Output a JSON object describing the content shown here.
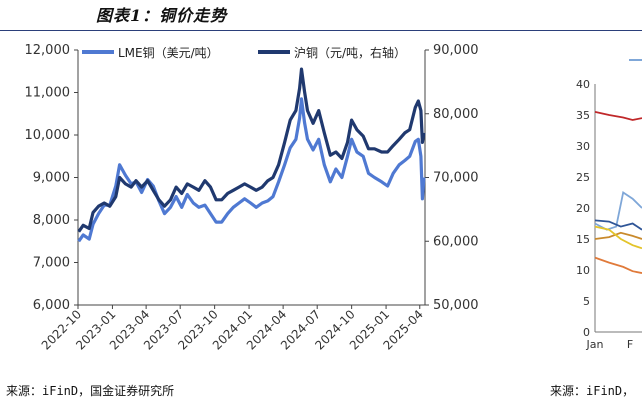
{
  "header": {
    "title": "图表1：铜价走势"
  },
  "footer": {
    "source_left": "来源：iFinD，国金证券研究所",
    "source_right": "来源：iFinD，"
  },
  "chart_data": [
    {
      "type": "line",
      "title": "",
      "x_ticks": [
        "2022-10",
        "2023-01",
        "2023-04",
        "2023-07",
        "2023-10",
        "2024-01",
        "2024-04",
        "2024-07",
        "2024-10",
        "2025-01",
        "2025-04"
      ],
      "y_left": {
        "label": "",
        "ylim": [
          6000,
          12000
        ],
        "ticks": [
          "6,000",
          "7,000",
          "8,000",
          "9,000",
          "10,000",
          "11,000",
          "12,000"
        ]
      },
      "y_right": {
        "label": "",
        "ylim": [
          50000,
          90000
        ],
        "ticks": [
          "50,000",
          "60,000",
          "70,000",
          "80,000",
          "90,000"
        ]
      },
      "legend_placement": "top",
      "grid": false,
      "series": [
        {
          "name": "LME铜（美元/吨）",
          "axis": "left",
          "color": "#4f79d2",
          "points": [
            [
              "2022-10-03",
              7500
            ],
            [
              "2022-10-15",
              7650
            ],
            [
              "2022-10-31",
              7550
            ],
            [
              "2022-11-10",
              7900
            ],
            [
              "2022-11-25",
              8150
            ],
            [
              "2022-12-10",
              8350
            ],
            [
              "2022-12-25",
              8350
            ],
            [
              "2023-01-10",
              8800
            ],
            [
              "2023-01-20",
              9300
            ],
            [
              "2023-02-05",
              9050
            ],
            [
              "2023-02-20",
              8850
            ],
            [
              "2023-03-05",
              8900
            ],
            [
              "2023-03-20",
              8650
            ],
            [
              "2023-04-05",
              8950
            ],
            [
              "2023-04-20",
              8800
            ],
            [
              "2023-05-05",
              8450
            ],
            [
              "2023-05-20",
              8150
            ],
            [
              "2023-06-05",
              8300
            ],
            [
              "2023-06-20",
              8550
            ],
            [
              "2023-07-05",
              8300
            ],
            [
              "2023-07-20",
              8600
            ],
            [
              "2023-08-05",
              8400
            ],
            [
              "2023-08-20",
              8300
            ],
            [
              "2023-09-05",
              8350
            ],
            [
              "2023-09-20",
              8150
            ],
            [
              "2023-10-05",
              7950
            ],
            [
              "2023-10-20",
              7950
            ],
            [
              "2023-11-05",
              8150
            ],
            [
              "2023-11-20",
              8300
            ],
            [
              "2023-12-05",
              8400
            ],
            [
              "2023-12-20",
              8500
            ],
            [
              "2024-01-05",
              8400
            ],
            [
              "2024-01-20",
              8300
            ],
            [
              "2024-02-05",
              8400
            ],
            [
              "2024-02-20",
              8450
            ],
            [
              "2024-03-05",
              8550
            ],
            [
              "2024-03-20",
              8900
            ],
            [
              "2024-04-05",
              9300
            ],
            [
              "2024-04-20",
              9700
            ],
            [
              "2024-05-05",
              9900
            ],
            [
              "2024-05-15",
              10400
            ],
            [
              "2024-05-20",
              10850
            ],
            [
              "2024-05-28",
              10300
            ],
            [
              "2024-06-05",
              9900
            ],
            [
              "2024-06-20",
              9650
            ],
            [
              "2024-07-05",
              9900
            ],
            [
              "2024-07-20",
              9300
            ],
            [
              "2024-08-05",
              8900
            ],
            [
              "2024-08-20",
              9200
            ],
            [
              "2024-09-05",
              9000
            ],
            [
              "2024-09-20",
              9500
            ],
            [
              "2024-10-01",
              9900
            ],
            [
              "2024-10-15",
              9600
            ],
            [
              "2024-11-01",
              9500
            ],
            [
              "2024-11-15",
              9100
            ],
            [
              "2024-12-01",
              9000
            ],
            [
              "2024-12-20",
              8900
            ],
            [
              "2025-01-05",
              8800
            ],
            [
              "2025-01-20",
              9100
            ],
            [
              "2025-02-05",
              9300
            ],
            [
              "2025-02-20",
              9400
            ],
            [
              "2025-03-05",
              9500
            ],
            [
              "2025-03-20",
              9850
            ],
            [
              "2025-03-28",
              9900
            ],
            [
              "2025-04-04",
              9500
            ],
            [
              "2025-04-08",
              8500
            ],
            [
              "2025-04-12",
              9000
            ]
          ]
        },
        {
          "name": "沪铜（元/吨，右轴）",
          "axis": "right",
          "color": "#20396f",
          "points": [
            [
              "2022-10-03",
              61500
            ],
            [
              "2022-10-15",
              62500
            ],
            [
              "2022-10-31",
              62000
            ],
            [
              "2022-11-10",
              64500
            ],
            [
              "2022-11-25",
              65500
            ],
            [
              "2022-12-10",
              66000
            ],
            [
              "2022-12-25",
              65500
            ],
            [
              "2023-01-10",
              67000
            ],
            [
              "2023-01-20",
              70000
            ],
            [
              "2023-02-05",
              69000
            ],
            [
              "2023-02-20",
              68500
            ],
            [
              "2023-03-05",
              69500
            ],
            [
              "2023-03-20",
              68500
            ],
            [
              "2023-04-05",
              69500
            ],
            [
              "2023-04-20",
              68000
            ],
            [
              "2023-05-05",
              66500
            ],
            [
              "2023-05-20",
              65500
            ],
            [
              "2023-06-05",
              66500
            ],
            [
              "2023-06-20",
              68500
            ],
            [
              "2023-07-05",
              67500
            ],
            [
              "2023-07-20",
              69000
            ],
            [
              "2023-08-05",
              68500
            ],
            [
              "2023-08-20",
              68000
            ],
            [
              "2023-09-05",
              69500
            ],
            [
              "2023-09-20",
              68500
            ],
            [
              "2023-10-05",
              66500
            ],
            [
              "2023-10-20",
              66500
            ],
            [
              "2023-11-05",
              67500
            ],
            [
              "2023-11-20",
              68000
            ],
            [
              "2023-12-05",
              68500
            ],
            [
              "2023-12-20",
              69000
            ],
            [
              "2024-01-05",
              68500
            ],
            [
              "2024-01-20",
              68000
            ],
            [
              "2024-02-05",
              68500
            ],
            [
              "2024-02-20",
              69500
            ],
            [
              "2024-03-05",
              70000
            ],
            [
              "2024-03-20",
              72000
            ],
            [
              "2024-04-05",
              75500
            ],
            [
              "2024-04-20",
              79000
            ],
            [
              "2024-05-05",
              80500
            ],
            [
              "2024-05-15",
              84000
            ],
            [
              "2024-05-20",
              87000
            ],
            [
              "2024-05-28",
              83500
            ],
            [
              "2024-06-05",
              80500
            ],
            [
              "2024-06-20",
              78500
            ],
            [
              "2024-07-05",
              80500
            ],
            [
              "2024-07-20",
              77000
            ],
            [
              "2024-08-05",
              73500
            ],
            [
              "2024-08-20",
              74000
            ],
            [
              "2024-09-05",
              73000
            ],
            [
              "2024-09-20",
              75500
            ],
            [
              "2024-10-01",
              79000
            ],
            [
              "2024-10-15",
              77500
            ],
            [
              "2024-11-01",
              76500
            ],
            [
              "2024-11-15",
              74500
            ],
            [
              "2024-12-01",
              74500
            ],
            [
              "2024-12-20",
              74000
            ],
            [
              "2025-01-05",
              74000
            ],
            [
              "2025-01-20",
              75000
            ],
            [
              "2025-02-05",
              76000
            ],
            [
              "2025-02-20",
              77000
            ],
            [
              "2025-03-05",
              77500
            ],
            [
              "2025-03-20",
              81000
            ],
            [
              "2025-03-28",
              82000
            ],
            [
              "2025-04-04",
              80500
            ],
            [
              "2025-04-08",
              75500
            ],
            [
              "2025-04-12",
              77000
            ]
          ]
        }
      ]
    },
    {
      "type": "line",
      "title": "",
      "ylim": [
        0,
        40
      ],
      "y_ticks": [
        "0",
        "5",
        "10",
        "15",
        "20",
        "25",
        "30",
        "35",
        "40"
      ],
      "x_ticks": [
        "Jan",
        "F"
      ],
      "series": [
        {
          "color": "#c0282a",
          "points": [
            [
              0,
              35.5
            ],
            [
              0.3,
              35.0
            ],
            [
              0.6,
              34.6
            ],
            [
              0.8,
              34.2
            ],
            [
              1.0,
              34.5
            ]
          ]
        },
        {
          "color": "#7fa7d8",
          "points": [
            [
              0,
              17.5
            ],
            [
              0.25,
              16.5
            ],
            [
              0.45,
              17.0
            ],
            [
              0.6,
              22.5
            ],
            [
              0.8,
              21.5
            ],
            [
              1.0,
              20.0
            ]
          ]
        },
        {
          "color": "#2f5597",
          "points": [
            [
              0,
              18.0
            ],
            [
              0.3,
              17.8
            ],
            [
              0.55,
              17.0
            ],
            [
              0.8,
              17.5
            ],
            [
              1.0,
              16.5
            ]
          ]
        },
        {
          "color": "#c98a2c",
          "points": [
            [
              0,
              15.0
            ],
            [
              0.3,
              15.3
            ],
            [
              0.55,
              16.0
            ],
            [
              0.8,
              15.5
            ],
            [
              1.0,
              15.0
            ]
          ]
        },
        {
          "color": "#e3c42a",
          "points": [
            [
              0,
              17.0
            ],
            [
              0.3,
              16.5
            ],
            [
              0.55,
              15.0
            ],
            [
              0.8,
              14.0
            ],
            [
              1.0,
              13.5
            ]
          ]
        },
        {
          "color": "#e07a3a",
          "points": [
            [
              0,
              12.0
            ],
            [
              0.3,
              11.2
            ],
            [
              0.6,
              10.5
            ],
            [
              0.8,
              9.8
            ],
            [
              1.0,
              9.5
            ]
          ]
        }
      ],
      "legend_placement": "top-right"
    }
  ]
}
